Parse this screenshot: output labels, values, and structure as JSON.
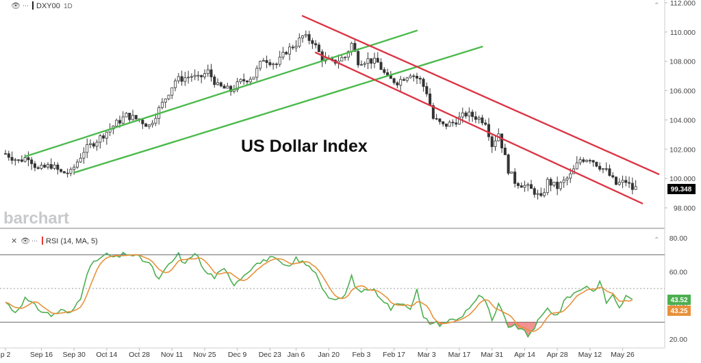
{
  "header": {
    "symbol": "DXY00",
    "interval": "1D"
  },
  "annotation": "US Dollar Index",
  "watermark": "barchart",
  "price_panel": {
    "last_price": "99.348",
    "last_color": "#000000"
  },
  "rsi_panel": {
    "label": "RSI (14, MA, 5)",
    "rsi_badge": "43.52",
    "ma_badge": "43.25",
    "rsi_color": "#4caf50",
    "ma_color": "#e8903a"
  },
  "colors": {
    "uptrend": "#4cba4c",
    "downtrend": "#dc3545",
    "candle": "#333333",
    "overbought_fill": "#3d5afe",
    "oversold_fill": "#e53935"
  },
  "chart_data": [
    {
      "type": "candlestick",
      "series_name": "DXY00",
      "ylim": [
        97,
        112
      ],
      "yticks": [
        "112.000",
        "110.000",
        "108.000",
        "106.000",
        "104.000",
        "102.000",
        "100.000",
        "98.000"
      ],
      "x_index_range": [
        0,
        200
      ],
      "xticks": [
        {
          "i": 0,
          "label": "p 2"
        },
        {
          "i": 11,
          "label": "Sep 16"
        },
        {
          "i": 21,
          "label": "Sep 30"
        },
        {
          "i": 31,
          "label": "Oct 14"
        },
        {
          "i": 41,
          "label": "Oct 28"
        },
        {
          "i": 51,
          "label": "Nov 11"
        },
        {
          "i": 61,
          "label": "Nov 25"
        },
        {
          "i": 71,
          "label": "Dec 9"
        },
        {
          "i": 81,
          "label": "Dec 23"
        },
        {
          "i": 89,
          "label": "Jan 6"
        },
        {
          "i": 99,
          "label": "Jan 20"
        },
        {
          "i": 109,
          "label": "Feb 3"
        },
        {
          "i": 119,
          "label": "Feb 17"
        },
        {
          "i": 129,
          "label": "Mar 3"
        },
        {
          "i": 139,
          "label": "Mar 17"
        },
        {
          "i": 149,
          "label": "Mar 31"
        },
        {
          "i": 159,
          "label": "Apr 14"
        },
        {
          "i": 169,
          "label": "Apr 28"
        },
        {
          "i": 179,
          "label": "May 12"
        },
        {
          "i": 189,
          "label": "May 26"
        }
      ],
      "close_anchors": [
        [
          0,
          101.7
        ],
        [
          4,
          101.2
        ],
        [
          7,
          101.5
        ],
        [
          10,
          100.6
        ],
        [
          14,
          100.9
        ],
        [
          17,
          100.4
        ],
        [
          20,
          100.4
        ],
        [
          24,
          101.9
        ],
        [
          29,
          102.8
        ],
        [
          33,
          103.6
        ],
        [
          37,
          104.3
        ],
        [
          41,
          104.0
        ],
        [
          44,
          103.6
        ],
        [
          48,
          105.1
        ],
        [
          52,
          106.7
        ],
        [
          57,
          107.0
        ],
        [
          59,
          106.8
        ],
        [
          62,
          107.3
        ],
        [
          65,
          106.3
        ],
        [
          69,
          106.0
        ],
        [
          72,
          106.6
        ],
        [
          76,
          107.0
        ],
        [
          79,
          108.2
        ],
        [
          83,
          107.8
        ],
        [
          86,
          108.7
        ],
        [
          89,
          109.2
        ],
        [
          91,
          109.7
        ],
        [
          94,
          109.4
        ],
        [
          97,
          108.2
        ],
        [
          100,
          107.9
        ],
        [
          104,
          108.3
        ],
        [
          106,
          109.2
        ],
        [
          108,
          108.0
        ],
        [
          111,
          108.1
        ],
        [
          114,
          107.9
        ],
        [
          117,
          106.8
        ],
        [
          120,
          106.6
        ],
        [
          124,
          107.2
        ],
        [
          127,
          106.7
        ],
        [
          129,
          105.9
        ],
        [
          131,
          104.1
        ],
        [
          134,
          103.6
        ],
        [
          137,
          103.8
        ],
        [
          141,
          104.4
        ],
        [
          144,
          104.2
        ],
        [
          147,
          103.9
        ],
        [
          149,
          102.3
        ],
        [
          151,
          103.1
        ],
        [
          154,
          100.6
        ],
        [
          156,
          99.8
        ],
        [
          159,
          99.5
        ],
        [
          162,
          99.1
        ],
        [
          164,
          98.6
        ],
        [
          166,
          99.8
        ],
        [
          169,
          99.4
        ],
        [
          173,
          100.2
        ],
        [
          176,
          101.3
        ],
        [
          179,
          101.4
        ],
        [
          181,
          101.0
        ],
        [
          184,
          100.5
        ],
        [
          187,
          99.6
        ],
        [
          190,
          99.8
        ],
        [
          192,
          99.3
        ],
        [
          193,
          99.35
        ]
      ],
      "upper_channel": {
        "from": [
          6,
          101.5
        ],
        "to": [
          126,
          110.1
        ]
      },
      "lower_channel_up": {
        "from": [
          21,
          100.4
        ],
        "to": [
          146,
          109.0
        ]
      },
      "down_channel_top": {
        "from": [
          91,
          111.1
        ],
        "to": [
          200,
          100.3
        ]
      },
      "down_channel_bottom": {
        "from": [
          95,
          108.6
        ],
        "to": [
          195,
          98.3
        ]
      }
    },
    {
      "type": "line",
      "series": [
        {
          "name": "RSI (14, MA, 5)"
        }
      ],
      "ylim": [
        20,
        80
      ],
      "yticks": [
        "80.00",
        "60.00",
        "40.00",
        "20.00"
      ],
      "reference_lines": [
        70,
        50,
        30
      ],
      "rsi_anchors": [
        [
          0,
          42
        ],
        [
          3,
          36
        ],
        [
          6,
          44
        ],
        [
          10,
          38
        ],
        [
          14,
          34
        ],
        [
          17,
          37
        ],
        [
          20,
          35
        ],
        [
          23,
          45
        ],
        [
          25,
          60
        ],
        [
          28,
          67
        ],
        [
          31,
          70
        ],
        [
          34,
          68
        ],
        [
          37,
          71
        ],
        [
          40,
          69
        ],
        [
          44,
          65
        ],
        [
          47,
          55
        ],
        [
          50,
          64
        ],
        [
          53,
          70
        ],
        [
          55,
          64
        ],
        [
          58,
          72
        ],
        [
          61,
          60
        ],
        [
          64,
          57
        ],
        [
          67,
          61
        ],
        [
          70,
          53
        ],
        [
          73,
          58
        ],
        [
          76,
          64
        ],
        [
          79,
          66
        ],
        [
          81,
          69
        ],
        [
          84,
          65
        ],
        [
          87,
          62
        ],
        [
          89,
          68
        ],
        [
          92,
          64
        ],
        [
          95,
          60
        ],
        [
          98,
          47
        ],
        [
          101,
          42
        ],
        [
          104,
          46
        ],
        [
          106,
          57
        ],
        [
          108,
          48
        ],
        [
          112,
          50
        ],
        [
          115,
          45
        ],
        [
          118,
          38
        ],
        [
          121,
          42
        ],
        [
          124,
          39
        ],
        [
          126,
          49
        ],
        [
          128,
          32
        ],
        [
          130,
          30
        ],
        [
          133,
          29
        ],
        [
          136,
          31
        ],
        [
          139,
          32
        ],
        [
          142,
          39
        ],
        [
          145,
          45
        ],
        [
          147,
          43
        ],
        [
          149,
          30
        ],
        [
          151,
          40
        ],
        [
          154,
          28
        ],
        [
          157,
          27
        ],
        [
          160,
          22
        ],
        [
          163,
          30
        ],
        [
          166,
          38
        ],
        [
          169,
          34
        ],
        [
          172,
          45
        ],
        [
          175,
          48
        ],
        [
          178,
          52
        ],
        [
          180,
          48
        ],
        [
          182,
          54
        ],
        [
          184,
          42
        ],
        [
          186,
          46
        ],
        [
          188,
          39
        ],
        [
          190,
          45
        ],
        [
          192,
          43.5
        ]
      ]
    }
  ]
}
